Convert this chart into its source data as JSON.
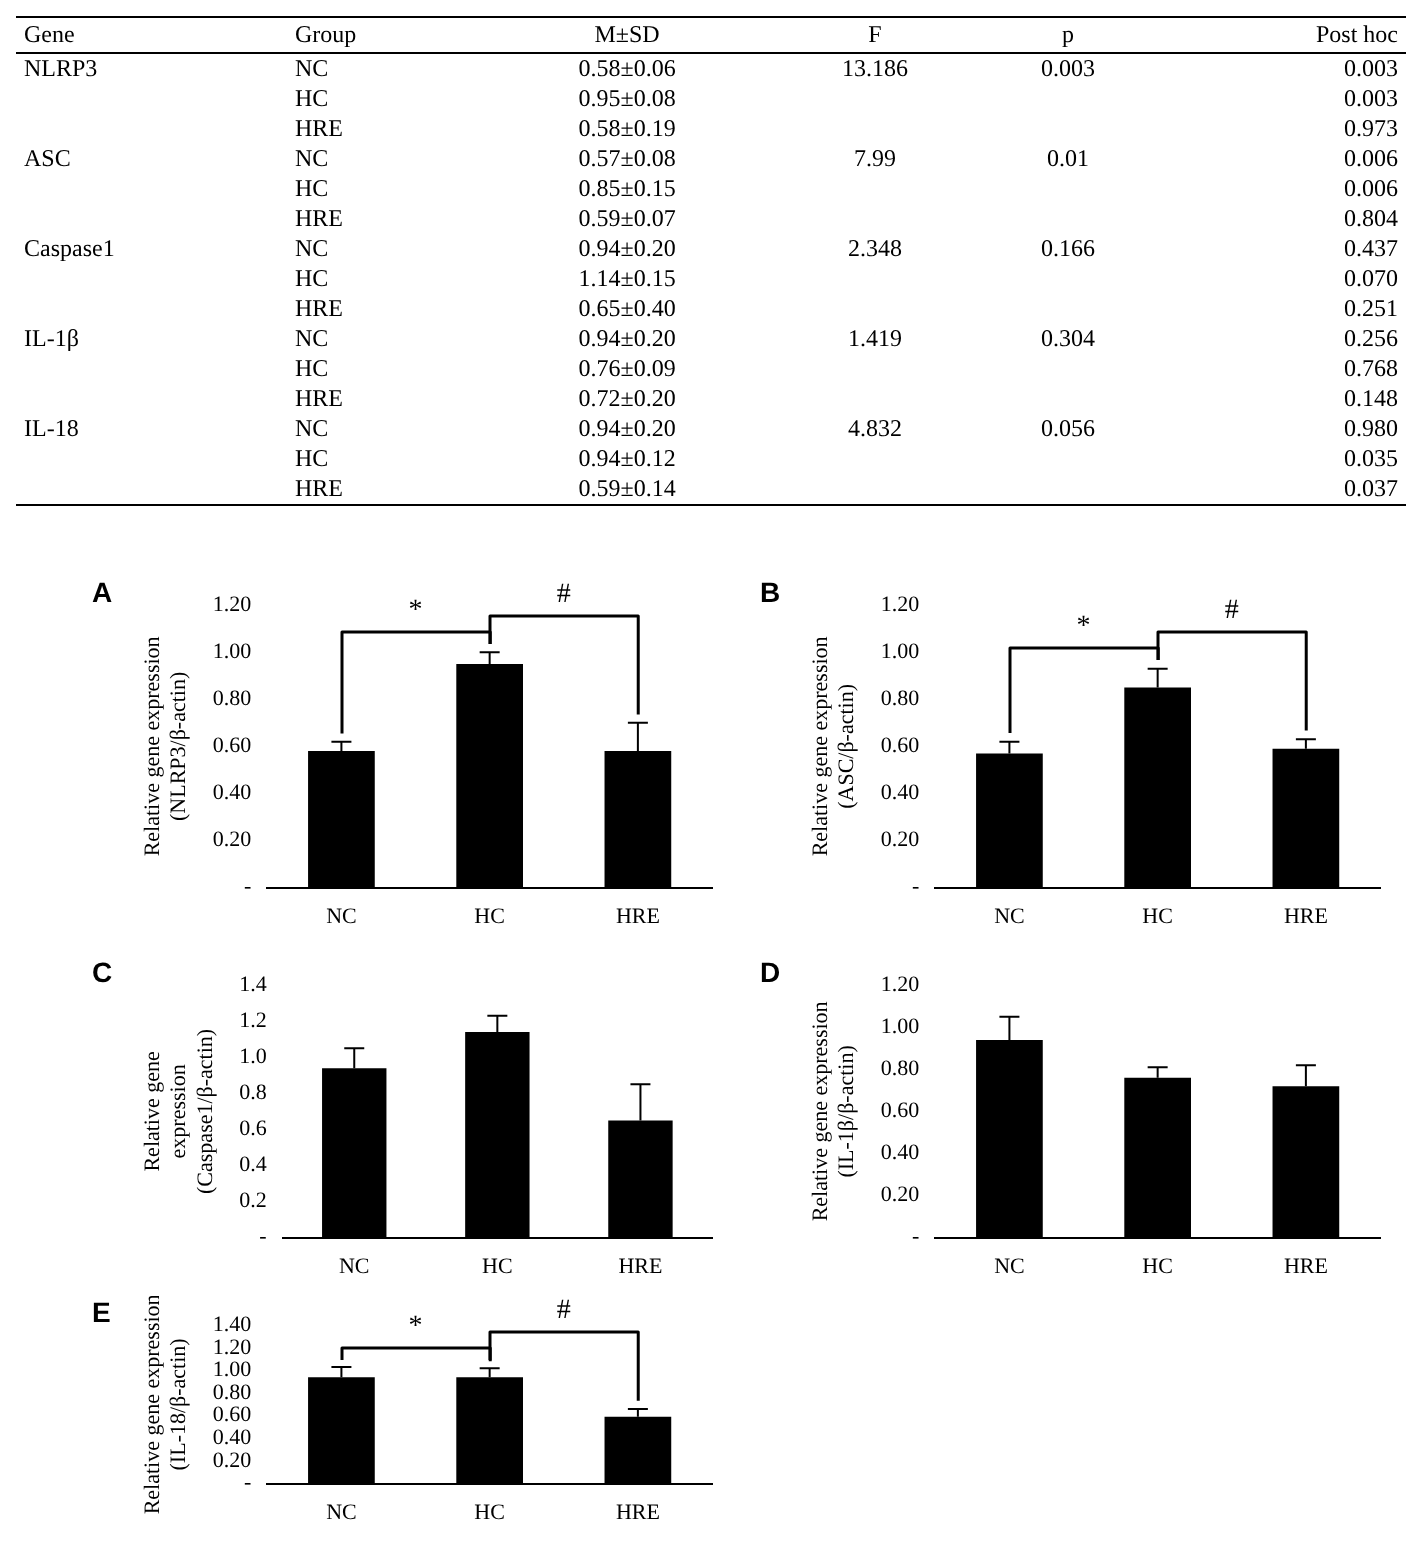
{
  "chart_data": [
    {
      "type": "other",
      "categories": [
        "Gene",
        "Group",
        "M±SD",
        "F",
        "p",
        "Post  hoc"
      ],
      "cell_labels": [
        [
          "NLRP3",
          "NC",
          "0.58±0.06",
          "13.186",
          "0.003",
          "0.003"
        ],
        [
          null,
          "HC",
          "0.95±0.08",
          null,
          null,
          "0.003"
        ],
        [
          null,
          "HRE",
          "0.58±0.19",
          null,
          null,
          "0.973"
        ],
        [
          "ASC",
          "NC",
          "0.57±0.08",
          "7.99",
          "0.01",
          "0.006"
        ],
        [
          null,
          "HC",
          "0.85±0.15",
          null,
          null,
          "0.006"
        ],
        [
          null,
          "HRE",
          "0.59±0.07",
          null,
          null,
          "0.804"
        ],
        [
          "Caspase1",
          "NC",
          "0.94±0.20",
          "2.348",
          "0.166",
          "0.437"
        ],
        [
          null,
          "HC",
          "1.14±0.15",
          null,
          null,
          "0.070"
        ],
        [
          null,
          "HRE",
          "0.65±0.40",
          null,
          null,
          "0.251"
        ],
        [
          "IL-1β",
          "NC",
          "0.94±0.20",
          "1.419",
          "0.304",
          "0.256"
        ],
        [
          null,
          "HC",
          "0.76±0.09",
          null,
          null,
          "0.768"
        ],
        [
          null,
          "HRE",
          "0.72±0.20",
          null,
          null,
          "0.148"
        ],
        [
          "IL-18",
          "NC",
          "0.94±0.20",
          "4.832",
          "0.056",
          "0.980"
        ],
        [
          null,
          "HC",
          "0.94±0.12",
          null,
          null,
          "0.035"
        ],
        [
          null,
          "HRE",
          "0.59±0.14",
          null,
          null,
          "0.037"
        ]
      ]
    },
    {
      "type": "bar",
      "title": "A",
      "categories": [
        "NC",
        "HC",
        "HRE"
      ],
      "values": [
        0.58,
        0.95,
        0.58
      ],
      "color": "#000000",
      "errors": [
        [
          0.58,
          0.62
        ],
        [
          0.95,
          1.0
        ],
        [
          0.58,
          0.7
        ]
      ],
      "ylim": [
        0,
        1.2
      ],
      "yticks": [
        {
          "value": 0,
          "label": "-"
        },
        {
          "value": 0.2,
          "label": "0.20"
        },
        {
          "value": 0.4,
          "label": "0.40"
        },
        {
          "value": 0.6,
          "label": "0.60"
        },
        {
          "value": 0.8,
          "label": "0.80"
        },
        {
          "value": 1.0,
          "label": "1.00"
        },
        {
          "value": 1.2,
          "label": "1.20"
        }
      ],
      "ylabel": "Relative gene expression\n(NLRP3/β-actin)",
      "annotations": [
        "*",
        "#"
      ]
    },
    {
      "type": "bar",
      "title": "B",
      "categories": [
        "NC",
        "HC",
        "HRE"
      ],
      "values": [
        0.57,
        0.85,
        0.59
      ],
      "color": "#000000",
      "errors": [
        [
          0.57,
          0.62
        ],
        [
          0.85,
          0.93
        ],
        [
          0.59,
          0.63
        ]
      ],
      "ylim": [
        0,
        1.2
      ],
      "yticks": [
        {
          "value": 0,
          "label": "-"
        },
        {
          "value": 0.2,
          "label": "0.20"
        },
        {
          "value": 0.4,
          "label": "0.40"
        },
        {
          "value": 0.6,
          "label": "0.60"
        },
        {
          "value": 0.8,
          "label": "0.80"
        },
        {
          "value": 1.0,
          "label": "1.00"
        },
        {
          "value": 1.2,
          "label": "1.20"
        }
      ],
      "ylabel": "Relative gene expression\n(ASC/β-actin)",
      "annotations": [
        "*",
        "#"
      ]
    },
    {
      "type": "bar",
      "title": "C",
      "categories": [
        "NC",
        "HC",
        "HRE"
      ],
      "values": [
        0.94,
        1.14,
        0.65
      ],
      "color": "#000000",
      "errors": [
        [
          0.94,
          1.05
        ],
        [
          1.14,
          1.23
        ],
        [
          0.65,
          0.85
        ]
      ],
      "ylim": [
        0,
        1.4
      ],
      "yticks": [
        {
          "value": 0,
          "label": "-"
        },
        0.2,
        0.4,
        0.6,
        0.8,
        {
          "value": 1.0,
          "label": "1.0"
        },
        1.2,
        1.4
      ],
      "ylabel": "Relative gene\nexpression\n(Caspase1/β-actin)"
    },
    {
      "type": "bar",
      "title": "D",
      "categories": [
        "NC",
        "HC",
        "HRE"
      ],
      "values": [
        0.94,
        0.76,
        0.72
      ],
      "color": "#000000",
      "errors": [
        [
          0.94,
          1.05
        ],
        [
          0.76,
          0.81
        ],
        [
          0.72,
          0.82
        ]
      ],
      "ylim": [
        0,
        1.2
      ],
      "yticks": [
        {
          "value": 0,
          "label": "-"
        },
        {
          "value": 0.2,
          "label": "0.20"
        },
        {
          "value": 0.4,
          "label": "0.40"
        },
        {
          "value": 0.6,
          "label": "0.60"
        },
        {
          "value": 0.8,
          "label": "0.80"
        },
        {
          "value": 1.0,
          "label": "1.00"
        },
        {
          "value": 1.2,
          "label": "1.20"
        }
      ],
      "ylabel": "Relative gene expression\n(IL-1β/β-actin)"
    },
    {
      "type": "bar",
      "title": "E",
      "categories": [
        "NC",
        "HC",
        "HRE"
      ],
      "values": [
        0.94,
        0.94,
        0.59
      ],
      "color": "#000000",
      "errors": [
        [
          0.94,
          1.03
        ],
        [
          0.94,
          1.02
        ],
        [
          0.59,
          0.66
        ]
      ],
      "ylim": [
        0,
        1.4
      ],
      "yticks": [
        {
          "value": 0,
          "label": "-"
        },
        {
          "value": 0.2,
          "label": "0.20"
        },
        {
          "value": 0.4,
          "label": "0.40"
        },
        {
          "value": 0.6,
          "label": "0.60"
        },
        {
          "value": 0.8,
          "label": "0.80"
        },
        {
          "value": 1.0,
          "label": "1.00"
        },
        {
          "value": 1.2,
          "label": "1.20"
        },
        {
          "value": 1.4,
          "label": "1.40"
        }
      ],
      "ylabel": "Relative gene expression\n(IL-18/β-actin)",
      "annotations": [
        "*",
        "#"
      ]
    }
  ]
}
